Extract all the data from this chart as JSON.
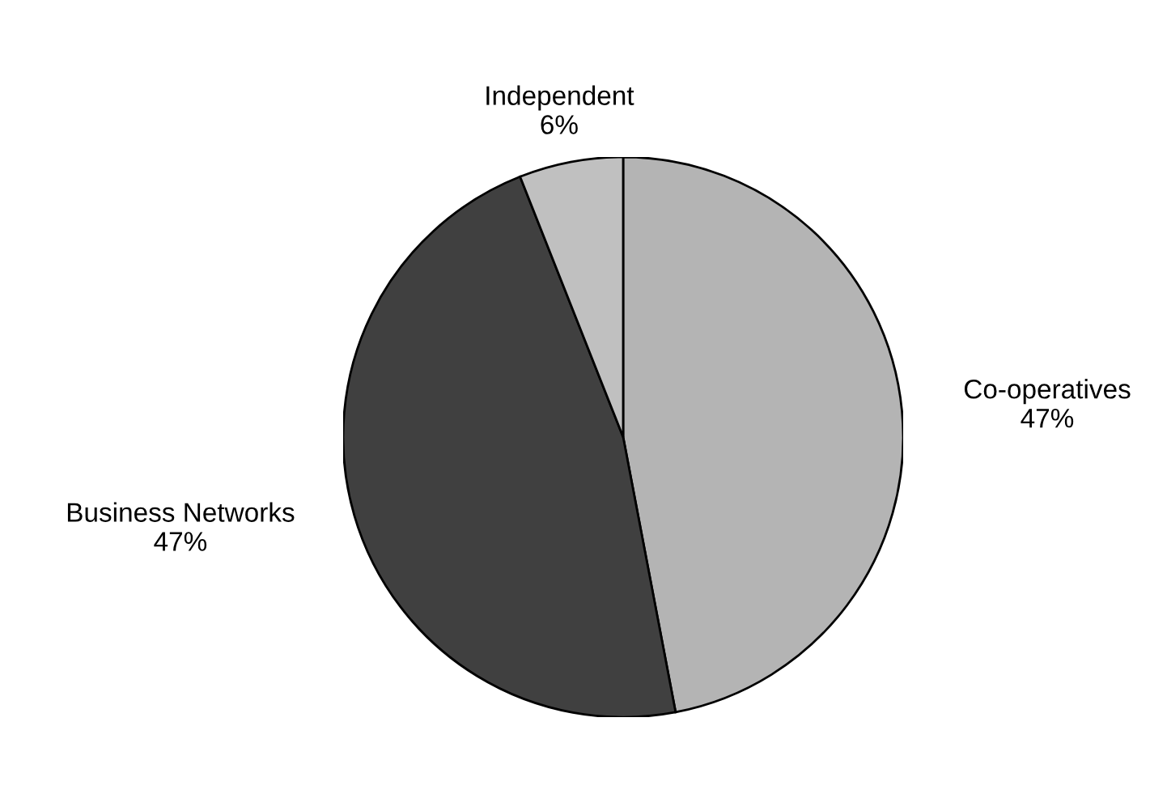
{
  "chart_data": {
    "type": "pie",
    "categories": [
      "Co-operatives",
      "Business Networks",
      "Independent"
    ],
    "values": [
      47,
      47,
      6
    ],
    "value_labels": [
      "47%",
      "47%",
      "6%"
    ],
    "colors": [
      "#b4b4b4",
      "#404040",
      "#c0c0c0"
    ],
    "legend": false
  }
}
